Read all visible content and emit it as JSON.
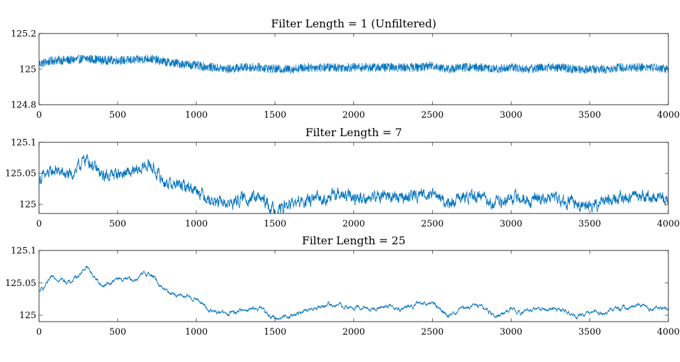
{
  "chart_data": [
    {
      "type": "line",
      "title": "Filter Length = 1 (Unfiltered)",
      "xlabel": "",
      "ylabel": "",
      "xlim": [
        0,
        4000
      ],
      "ylim": [
        124.8,
        125.2
      ],
      "xticks": [
        "0",
        "500",
        "1000",
        "1500",
        "2000",
        "2500",
        "3000",
        "3500",
        "4000"
      ],
      "yticks": [
        "125.2",
        "125",
        "124.8"
      ],
      "grid": false,
      "color": "#0072BD",
      "series": [
        {
          "x": [
            0,
            100,
            200,
            300,
            400,
            500,
            600,
            700,
            800,
            900,
            1000,
            1100,
            1200,
            1300,
            1400,
            1500,
            1600,
            1700,
            1800,
            1900,
            2000,
            2100,
            2200,
            2300,
            2400,
            2500,
            2600,
            2700,
            2800,
            2900,
            3000,
            3100,
            3200,
            3300,
            3400,
            3500,
            3600,
            3700,
            3800,
            3900,
            4000
          ],
          "values": [
            125.03,
            125.05,
            125.05,
            125.06,
            125.05,
            125.05,
            125.05,
            125.06,
            125.04,
            125.03,
            125.02,
            125.01,
            125.0,
            125.01,
            125.01,
            125.0,
            125.0,
            125.01,
            125.01,
            125.01,
            125.01,
            125.01,
            125.01,
            125.01,
            125.01,
            125.02,
            125.0,
            125.01,
            125.01,
            125.0,
            125.01,
            125.0,
            125.01,
            125.01,
            125.0,
            125.0,
            125.0,
            125.01,
            125.01,
            125.01,
            125.0
          ],
          "noise": 0.025
        }
      ]
    },
    {
      "type": "line",
      "title": "Filter Length = 7",
      "xlabel": "",
      "ylabel": "",
      "xlim": [
        0,
        4000
      ],
      "ylim": [
        124.985,
        125.1
      ],
      "xticks": [
        "0",
        "500",
        "1000",
        "1500",
        "2000",
        "2500",
        "3000",
        "3500",
        "4000"
      ],
      "yticks": [
        "125.1",
        "125.05",
        "125"
      ],
      "grid": false,
      "color": "#0072BD",
      "series": [
        {
          "x": [
            0,
            100,
            200,
            300,
            400,
            500,
            600,
            700,
            800,
            900,
            1000,
            1100,
            1200,
            1300,
            1400,
            1500,
            1600,
            1700,
            1800,
            1900,
            2000,
            2100,
            2200,
            2300,
            2400,
            2500,
            2600,
            2700,
            2800,
            2900,
            3000,
            3100,
            3200,
            3300,
            3400,
            3500,
            3600,
            3700,
            3800,
            3900,
            4000
          ],
          "values": [
            125.04,
            125.055,
            125.045,
            125.075,
            125.045,
            125.05,
            125.05,
            125.065,
            125.035,
            125.03,
            125.025,
            125.005,
            125.0,
            125.01,
            125.01,
            124.99,
            125.0,
            125.005,
            125.01,
            125.015,
            125.01,
            125.01,
            125.015,
            125.01,
            125.015,
            125.02,
            125.0,
            125.01,
            125.015,
            125.0,
            125.01,
            125.005,
            125.01,
            125.01,
            125.0,
            125.0,
            125.005,
            125.01,
            125.015,
            125.01,
            125.01
          ],
          "noise": 0.009
        }
      ]
    },
    {
      "type": "line",
      "title": "Filter Length = 25",
      "xlabel": "",
      "ylabel": "",
      "xlim": [
        0,
        4000
      ],
      "ylim": [
        124.99,
        125.1
      ],
      "xticks": [
        "0",
        "500",
        "1000",
        "1500",
        "2000",
        "2500",
        "3000",
        "3500",
        "4000"
      ],
      "yticks": [
        "125.1",
        "125.05",
        "125"
      ],
      "grid": false,
      "color": "#0072BD",
      "series": [
        {
          "x": [
            0,
            100,
            200,
            300,
            400,
            500,
            600,
            700,
            800,
            900,
            1000,
            1100,
            1200,
            1300,
            1400,
            1500,
            1600,
            1700,
            1800,
            1900,
            2000,
            2100,
            2200,
            2300,
            2400,
            2500,
            2600,
            2700,
            2800,
            2900,
            3000,
            3100,
            3200,
            3300,
            3400,
            3500,
            3600,
            3700,
            3800,
            3900,
            4000
          ],
          "values": [
            125.035,
            125.06,
            125.05,
            125.075,
            125.045,
            125.055,
            125.055,
            125.065,
            125.04,
            125.03,
            125.025,
            125.005,
            125.0,
            125.01,
            125.01,
            124.995,
            125.0,
            125.005,
            125.015,
            125.015,
            125.01,
            125.01,
            125.015,
            125.01,
            125.015,
            125.02,
            125.0,
            125.01,
            125.015,
            125.0,
            125.01,
            125.005,
            125.01,
            125.01,
            125.0,
            125.0,
            125.005,
            125.01,
            125.015,
            125.01,
            125.01
          ],
          "noise": 0.004
        }
      ]
    }
  ]
}
